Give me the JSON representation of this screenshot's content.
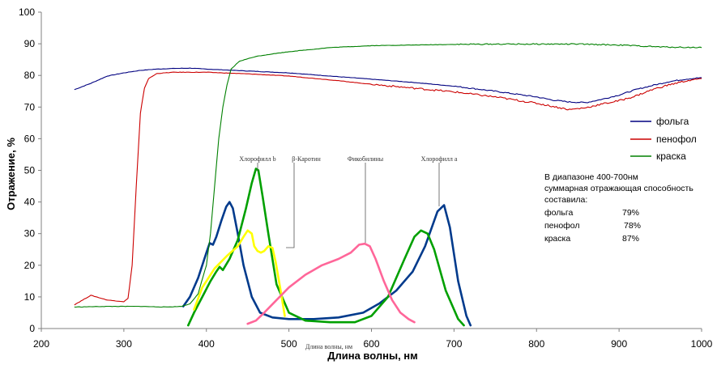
{
  "chart_data": {
    "type": "line",
    "title": "",
    "xlabel": "Длина волны, нм",
    "ylabel": "Отражение, %",
    "xlim": [
      200,
      1000
    ],
    "ylim": [
      0,
      100
    ],
    "xticks": [
      "200",
      "300",
      "400",
      "500",
      "600",
      "700",
      "800",
      "900",
      "1000"
    ],
    "yticks": [
      "0",
      "10",
      "20",
      "30",
      "40",
      "50",
      "60",
      "70",
      "80",
      "90",
      "100"
    ],
    "grid": false,
    "legend_position": "right",
    "series": [
      {
        "name": "фольга",
        "color": "#000080",
        "x": [
          240,
          260,
          280,
          300,
          320,
          340,
          360,
          380,
          400,
          450,
          500,
          550,
          600,
          650,
          700,
          750,
          800,
          820,
          840,
          860,
          880,
          900,
          920,
          940,
          960,
          980,
          1000
        ],
        "y": [
          75.5,
          77.5,
          79.8,
          80.8,
          81.6,
          82.0,
          82.2,
          82.3,
          82.0,
          81.4,
          80.8,
          79.8,
          78.8,
          77.8,
          76.6,
          75.0,
          73.2,
          72.2,
          71.6,
          71.4,
          72.5,
          73.8,
          75.5,
          76.8,
          78.0,
          78.8,
          79.3
        ]
      },
      {
        "name": "пенофол",
        "color": "#cc0000",
        "x": [
          240,
          260,
          280,
          300,
          305,
          310,
          315,
          320,
          325,
          330,
          340,
          360,
          400,
          450,
          500,
          550,
          600,
          650,
          700,
          750,
          800,
          820,
          840,
          860,
          880,
          900,
          920,
          940,
          960,
          980,
          1000
        ],
        "y": [
          7.5,
          10.5,
          9.0,
          8.5,
          9.5,
          20,
          45,
          68,
          76,
          79,
          80.6,
          81.0,
          81.0,
          80.5,
          79.8,
          78.6,
          77.2,
          76.0,
          74.8,
          73.2,
          71.2,
          70.2,
          69.2,
          69.8,
          71.0,
          72.0,
          73.5,
          75.5,
          77.0,
          78.2,
          79.0
        ]
      },
      {
        "name": "краска",
        "color": "#008000",
        "x": [
          240,
          280,
          320,
          350,
          370,
          380,
          390,
          400,
          405,
          410,
          415,
          420,
          425,
          430,
          440,
          460,
          480,
          500,
          550,
          600,
          650,
          700,
          750,
          800,
          850,
          900,
          950,
          1000
        ],
        "y": [
          6.8,
          7.0,
          7.0,
          6.8,
          7.0,
          7.8,
          11,
          20,
          30,
          45,
          60,
          70,
          77,
          82,
          84.5,
          86.0,
          86.8,
          87.5,
          88.8,
          89.4,
          89.6,
          89.8,
          89.9,
          89.9,
          89.9,
          89.6,
          89.0,
          88.8
        ]
      }
    ],
    "pigment_curves": [
      {
        "color": "#003a8c",
        "x": [
          372,
          380,
          390,
          400,
          404,
          408,
          412,
          418,
          424,
          428,
          432,
          438,
          445,
          455,
          465,
          480,
          500,
          530,
          560,
          590,
          610,
          630,
          650,
          665,
          680,
          688,
          695,
          705,
          715,
          720
        ],
        "y": [
          7,
          10,
          16,
          24,
          27,
          26.5,
          29,
          34,
          38.5,
          40,
          38,
          30,
          20,
          10,
          5,
          3.5,
          3,
          3,
          3.5,
          5,
          8,
          12,
          18,
          26,
          37,
          39,
          32,
          15,
          4,
          1
        ]
      },
      {
        "color": "#00a000",
        "x": [
          378,
          385,
          395,
          405,
          412,
          416,
          420,
          428,
          438,
          448,
          455,
          460,
          463,
          468,
          475,
          485,
          500,
          520,
          550,
          580,
          600,
          620,
          640,
          652,
          660,
          668,
          676,
          690,
          705,
          712
        ],
        "y": [
          1,
          5,
          10,
          15,
          18,
          19.5,
          18.5,
          22,
          28,
          38,
          46,
          50.5,
          50,
          42,
          30,
          14,
          5,
          2.5,
          2,
          2,
          4,
          10,
          22,
          29,
          31,
          30,
          25,
          12,
          3,
          1
        ]
      },
      {
        "color": "#ffff00",
        "x": [
          385,
          395,
          410,
          425,
          438,
          445,
          450,
          455,
          458,
          462,
          466,
          470,
          475,
          480,
          484,
          490,
          495
        ],
        "y": [
          6,
          13,
          19,
          23,
          26,
          29,
          31,
          30,
          26,
          24.5,
          24,
          24.5,
          26,
          25.5,
          21,
          12,
          4
        ]
      },
      {
        "color": "#ff6699",
        "x": [
          450,
          460,
          470,
          485,
          500,
          520,
          540,
          560,
          575,
          585,
          592,
          598,
          605,
          615,
          625,
          635,
          645,
          652
        ],
        "y": [
          1.5,
          2.5,
          5,
          9,
          13,
          17,
          20,
          22,
          24,
          26.5,
          26.8,
          26,
          22,
          15,
          9,
          5,
          3,
          2
        ]
      }
    ],
    "pigment_labels": [
      "Хлорофилл b",
      "β-Каротин",
      "Фикобилины",
      "Хлорофилл a"
    ],
    "inner_xlabel": "Длина волны, нм",
    "note": {
      "lines": [
        "В диапазоне 400-700нм",
        "суммарная отражающая способность",
        "составила:"
      ],
      "values": [
        {
          "name": "фольга",
          "value": "79%"
        },
        {
          "name": "пенофол",
          "value": "78%"
        },
        {
          "name": "краска",
          "value": "87%"
        }
      ]
    }
  }
}
